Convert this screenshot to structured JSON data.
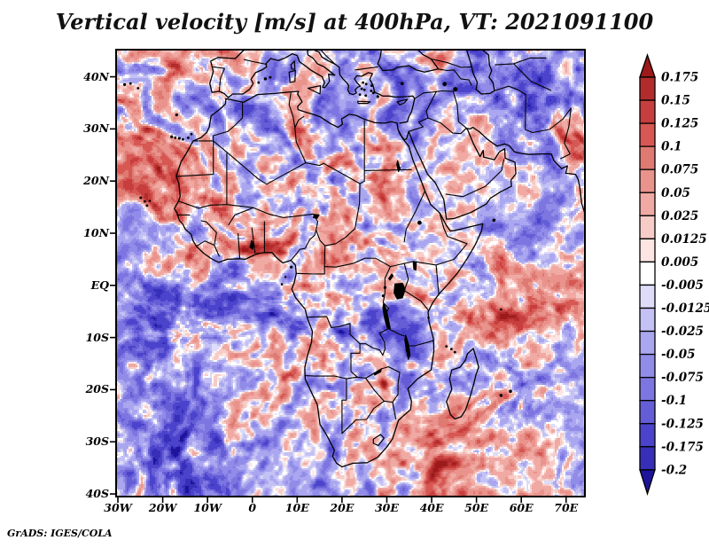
{
  "title": "Vertical velocity [m/s] at 400hPa, VT: 2021091100",
  "attribution": "GrADS: IGES/COLA",
  "map": {
    "frame_color": "#000000",
    "coastline_color": "#000000",
    "background": "#ffffff"
  },
  "y_axis": {
    "ticks": [
      {
        "label": "40N",
        "lat": 40
      },
      {
        "label": "30N",
        "lat": 30
      },
      {
        "label": "20N",
        "lat": 20
      },
      {
        "label": "10N",
        "lat": 10
      },
      {
        "label": "EQ",
        "lat": 0
      },
      {
        "label": "10S",
        "lat": -10
      },
      {
        "label": "20S",
        "lat": -20
      },
      {
        "label": "30S",
        "lat": -30
      },
      {
        "label": "40S",
        "lat": -40
      }
    ]
  },
  "x_axis": {
    "ticks": [
      {
        "label": "30W",
        "lon": -30
      },
      {
        "label": "20W",
        "lon": -20
      },
      {
        "label": "10W",
        "lon": -10
      },
      {
        "label": "0",
        "lon": 0
      },
      {
        "label": "10E",
        "lon": 10
      },
      {
        "label": "20E",
        "lon": 20
      },
      {
        "label": "30E",
        "lon": 30
      },
      {
        "label": "40E",
        "lon": 40
      },
      {
        "label": "50E",
        "lon": 50
      },
      {
        "label": "60E",
        "lon": 60
      },
      {
        "label": "70E",
        "lon": 70
      }
    ]
  },
  "colorbar": {
    "outline": "#000000",
    "labels_top_to_bottom": [
      "0.175",
      "0.15",
      "0.125",
      "0.1",
      "0.075",
      "0.05",
      "0.025",
      "0.0125",
      "0.005",
      "-0.005",
      "-0.0125",
      "-0.025",
      "-0.05",
      "-0.075",
      "-0.1",
      "-0.125",
      "-0.175",
      "-0.2"
    ]
  },
  "chart_data": {
    "type": "heatmap",
    "title": "Vertical velocity [m/s] at 400hPa, VT: 2021091100",
    "variable": "Vertical velocity",
    "units": "m/s",
    "pressure_level": "400hPa",
    "valid_time": "2021091100",
    "region": {
      "lon_min": -30,
      "lon_max": 74,
      "lat_min": -40,
      "lat_max": 45
    },
    "x_tick_labels": [
      "30W",
      "20W",
      "10W",
      "0",
      "10E",
      "20E",
      "30E",
      "40E",
      "50E",
      "60E",
      "70E"
    ],
    "y_tick_labels": [
      "40N",
      "30N",
      "20N",
      "10N",
      "EQ",
      "10S",
      "20S",
      "30S",
      "40S"
    ],
    "contour_levels": [
      -0.2,
      -0.175,
      -0.125,
      -0.1,
      -0.075,
      -0.05,
      -0.025,
      -0.0125,
      -0.005,
      0.005,
      0.0125,
      0.025,
      0.05,
      0.075,
      0.1,
      0.125,
      0.15,
      0.175
    ],
    "palette_low_to_high": [
      "#1d149b",
      "#372fb8",
      "#4b43cb",
      "#655dd6",
      "#7d76e1",
      "#918ce8",
      "#aaa6ef",
      "#c4c1f4",
      "#dddcf9",
      "#ffffff",
      "#fce5e2",
      "#f7cbc6",
      "#f0a9a3",
      "#e9938c",
      "#df7a73",
      "#d75753",
      "#c63e3e",
      "#b32c2c",
      "#9c1a1a"
    ],
    "legend_position": "right",
    "grid": false,
    "attribution": "GrADS: IGES/COLA"
  }
}
